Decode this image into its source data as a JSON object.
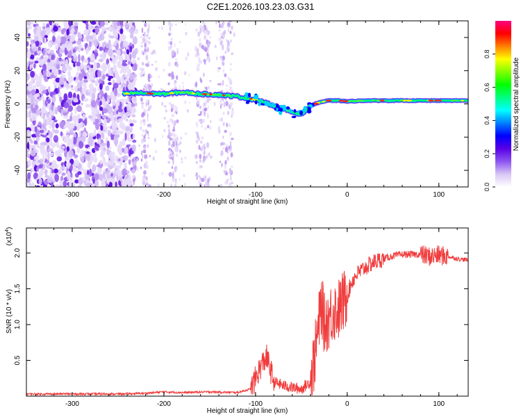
{
  "title": "C2E1.2026.103.23.03.G31",
  "chart_data": [
    {
      "type": "heatmap",
      "xlabel": "Height of straight line (km)",
      "ylabel": "Frequency (Hz)",
      "xlim": [
        -350,
        132
      ],
      "ylim": [
        -50,
        50
      ],
      "xticks": [
        -300,
        -200,
        -100,
        0,
        100
      ],
      "yticks": [
        -40,
        -20,
        0,
        20,
        40
      ],
      "colorbar": {
        "label": "Normalized spectral amplitude",
        "range": [
          0,
          1
        ],
        "ticks": [
          "0.0",
          "0.2",
          "0.4",
          "0.6",
          "0.8"
        ],
        "colors": [
          "#ffffff",
          "#d9c6f5",
          "#8c55f0",
          "#5a00e6",
          "#0000ff",
          "#0080ff",
          "#00ffff",
          "#00ff80",
          "#00ff00",
          "#80ff00",
          "#ffff00",
          "#ff8000",
          "#ff0000",
          "#ff0080"
        ]
      },
      "trace": {
        "x": [
          -245,
          -230,
          -200,
          -180,
          -160,
          -140,
          -120,
          -100,
          -80,
          -70,
          -60,
          -50,
          -45,
          -40,
          -30,
          -20,
          -10,
          0,
          20,
          50,
          80,
          100,
          132
        ],
        "y": [
          6,
          6.5,
          6,
          7,
          6,
          5.5,
          4.5,
          2.5,
          -1,
          -3,
          -5,
          -6,
          -4,
          -1,
          1,
          2,
          2,
          1.5,
          2,
          2,
          2,
          2,
          2
        ]
      }
    },
    {
      "type": "line",
      "xlabel": "Height of straight line (km)",
      "ylabel": "SNR (10 * v/v)",
      "yexponent": "(x10",
      "yexponent_power": "4",
      "xlim": [
        -350,
        132
      ],
      "ylim": [
        0,
        2.35
      ],
      "xticks": [
        -300,
        -200,
        -100,
        0,
        100
      ],
      "yticks": [
        "0.5",
        "1.0",
        "1.5",
        "2.0"
      ],
      "series": [
        {
          "color": "#f03c3c",
          "x": [
            -350,
            -300,
            -250,
            -220,
            -200,
            -180,
            -150,
            -120,
            -105,
            -95,
            -88,
            -80,
            -70,
            -60,
            -50,
            -40,
            -35,
            -30,
            -28,
            -25,
            -20,
            -15,
            -10,
            -5,
            0,
            5,
            10,
            20,
            30,
            40,
            50,
            60,
            70,
            80,
            90,
            100,
            110,
            120,
            132
          ],
          "y": [
            0.03,
            0.03,
            0.03,
            0.04,
            0.06,
            0.05,
            0.06,
            0.05,
            0.1,
            0.4,
            0.55,
            0.2,
            0.15,
            0.12,
            0.1,
            0.2,
            0.6,
            1.1,
            1.3,
            1.0,
            1.1,
            1.2,
            1.2,
            1.3,
            1.4,
            1.6,
            1.7,
            1.8,
            1.88,
            1.92,
            1.96,
            1.98,
            1.98,
            1.98,
            1.95,
            1.97,
            1.95,
            1.92,
            1.9
          ]
        }
      ]
    }
  ]
}
